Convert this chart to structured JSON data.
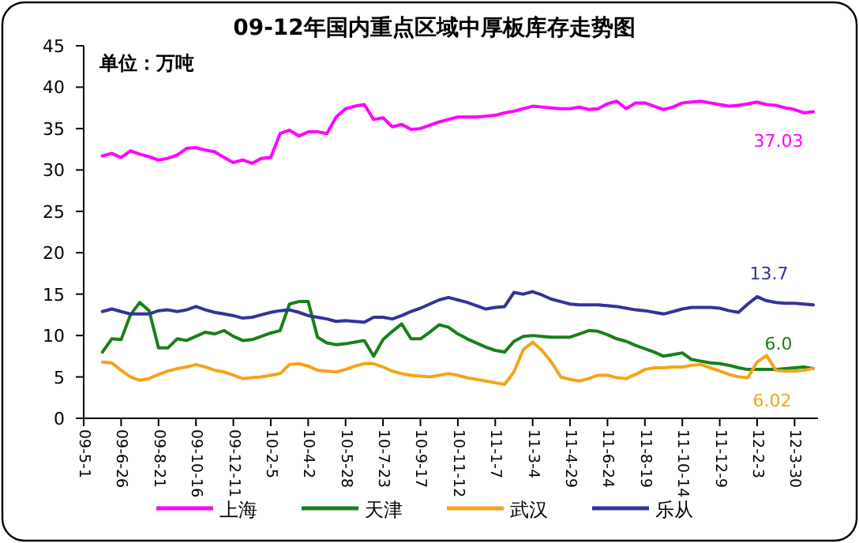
{
  "chart_data": {
    "type": "line",
    "title": "09-12年国内重点区域中厚板库存走势图",
    "ylabel": "单位：万吨",
    "x": [
      "2009-05-29",
      "2009-06-12",
      "2009-06-26",
      "2009-07-10",
      "2009-07-24",
      "2009-08-07",
      "2009-08-21",
      "2009-09-04",
      "2009-09-18",
      "2009-10-02",
      "2009-10-16",
      "2009-10-30",
      "2009-11-13",
      "2009-11-27",
      "2009-12-11",
      "2009-12-25",
      "2010-01-08",
      "2010-01-22",
      "2010-02-05",
      "2010-02-19",
      "2010-03-05",
      "2010-03-19",
      "2010-04-02",
      "2010-04-16",
      "2010-04-30",
      "2010-05-14",
      "2010-05-28",
      "2010-06-11",
      "2010-06-25",
      "2010-07-09",
      "2010-07-23",
      "2010-08-06",
      "2010-08-20",
      "2010-09-03",
      "2010-09-17",
      "2010-10-01",
      "2010-10-15",
      "2010-10-29",
      "2010-11-12",
      "2010-11-26",
      "2010-12-10",
      "2010-12-24",
      "2011-01-07",
      "2011-01-21",
      "2011-02-04",
      "2011-02-18",
      "2011-03-04",
      "2011-03-18",
      "2011-04-01",
      "2011-04-15",
      "2011-04-29",
      "2011-05-13",
      "2011-05-27",
      "2011-06-10",
      "2011-06-24",
      "2011-07-08",
      "2011-07-22",
      "2011-08-05",
      "2011-08-19",
      "2011-09-02",
      "2011-09-16",
      "2011-09-30",
      "2011-10-14",
      "2011-10-28",
      "2011-11-11",
      "2011-11-25",
      "2011-12-09",
      "2011-12-23",
      "2012-01-06",
      "2012-01-20",
      "2012-02-03",
      "2012-02-17",
      "2012-03-02",
      "2012-03-16",
      "2012-03-30",
      "2012-04-13",
      "2012-04-27"
    ],
    "series": [
      {
        "name": "上海",
        "color": "#ff00ff",
        "values": [
          31.7,
          32.0,
          31.5,
          32.3,
          31.9,
          31.6,
          31.2,
          31.4,
          31.8,
          32.6,
          32.7,
          32.4,
          32.2,
          31.5,
          30.9,
          31.2,
          30.8,
          31.4,
          31.5,
          34.4,
          34.8,
          34.1,
          34.6,
          34.6,
          34.4,
          36.4,
          37.4,
          37.7,
          37.9,
          36.1,
          36.3,
          35.2,
          35.5,
          34.9,
          35.0,
          35.4,
          35.8,
          36.1,
          36.4,
          36.4,
          36.4,
          36.5,
          36.6,
          36.9,
          37.1,
          37.4,
          37.7,
          37.6,
          37.5,
          37.4,
          37.4,
          37.6,
          37.3,
          37.4,
          38.0,
          38.3,
          37.4,
          38.1,
          38.1,
          37.7,
          37.3,
          37.6,
          38.1,
          38.2,
          38.3,
          38.1,
          37.9,
          37.7,
          37.8,
          38.0,
          38.2,
          37.9,
          37.8,
          37.5,
          37.3,
          36.9,
          37.03
        ]
      },
      {
        "name": "天津",
        "color": "#1a7f1a",
        "values": [
          8.0,
          9.6,
          9.5,
          12.5,
          14.0,
          13.0,
          8.5,
          8.5,
          9.6,
          9.4,
          9.9,
          10.4,
          10.2,
          10.6,
          9.9,
          9.4,
          9.5,
          9.9,
          10.3,
          10.6,
          13.8,
          14.1,
          14.1,
          9.8,
          9.1,
          8.9,
          9.0,
          9.2,
          9.4,
          7.5,
          9.5,
          10.5,
          11.4,
          9.6,
          9.6,
          10.4,
          11.3,
          11.0,
          10.2,
          9.6,
          9.1,
          8.6,
          8.2,
          8.0,
          9.3,
          9.9,
          10.0,
          9.9,
          9.8,
          9.8,
          9.8,
          10.2,
          10.6,
          10.5,
          10.1,
          9.6,
          9.3,
          8.8,
          8.4,
          8.0,
          7.5,
          7.7,
          7.9,
          7.1,
          6.9,
          6.7,
          6.6,
          6.4,
          6.1,
          5.9,
          5.9,
          5.9,
          5.9,
          6.0,
          6.1,
          6.2,
          6.0
        ]
      },
      {
        "name": "武汉",
        "color": "#f5a31a",
        "values": [
          6.8,
          6.7,
          5.8,
          5.0,
          4.6,
          4.8,
          5.3,
          5.7,
          6.0,
          6.2,
          6.5,
          6.2,
          5.8,
          5.6,
          5.2,
          4.8,
          4.9,
          5.0,
          5.2,
          5.4,
          6.5,
          6.6,
          6.3,
          5.8,
          5.7,
          5.6,
          5.9,
          6.3,
          6.6,
          6.6,
          6.2,
          5.7,
          5.4,
          5.2,
          5.1,
          5.0,
          5.2,
          5.4,
          5.2,
          4.9,
          4.7,
          4.5,
          4.3,
          4.1,
          5.6,
          8.3,
          9.2,
          8.2,
          6.8,
          5.0,
          4.7,
          4.5,
          4.8,
          5.2,
          5.2,
          4.9,
          4.8,
          5.3,
          5.9,
          6.1,
          6.1,
          6.2,
          6.2,
          6.4,
          6.5,
          6.1,
          5.7,
          5.3,
          5.0,
          4.9,
          6.8,
          7.6,
          5.8,
          5.7,
          5.7,
          5.8,
          6.02
        ]
      },
      {
        "name": "乐从",
        "color": "#333399",
        "values": [
          12.9,
          13.2,
          12.9,
          12.6,
          12.6,
          12.6,
          13.0,
          13.1,
          12.9,
          13.1,
          13.5,
          13.1,
          12.8,
          12.6,
          12.4,
          12.1,
          12.2,
          12.5,
          12.8,
          13.0,
          13.1,
          12.8,
          12.4,
          12.2,
          12.0,
          11.7,
          11.8,
          11.7,
          11.6,
          12.2,
          12.2,
          12.0,
          12.4,
          12.9,
          13.3,
          13.8,
          14.3,
          14.6,
          14.3,
          14.0,
          13.6,
          13.2,
          13.4,
          13.5,
          15.2,
          15.0,
          15.3,
          14.9,
          14.4,
          14.1,
          13.8,
          13.7,
          13.7,
          13.7,
          13.6,
          13.5,
          13.3,
          13.1,
          13.0,
          12.8,
          12.6,
          12.9,
          13.2,
          13.4,
          13.4,
          13.4,
          13.3,
          13.0,
          12.8,
          13.8,
          14.7,
          14.2,
          14.0,
          13.9,
          13.9,
          13.8,
          13.7
        ]
      }
    ],
    "xlim": [
      "2009-05-01",
      "2012-05-04"
    ],
    "xticks": [
      {
        "value": "2009-05-01",
        "label": "09-5-1"
      },
      {
        "value": "2009-06-26",
        "label": "09-6-26"
      },
      {
        "value": "2009-08-21",
        "label": "09-8-21"
      },
      {
        "value": "2009-10-16",
        "label": "09-10-16"
      },
      {
        "value": "2009-12-11",
        "label": "09-12-11"
      },
      {
        "value": "2010-02-05",
        "label": "10-2-5"
      },
      {
        "value": "2010-04-02",
        "label": "10-4-2"
      },
      {
        "value": "2010-05-28",
        "label": "10-5-28"
      },
      {
        "value": "2010-07-23",
        "label": "10-7-23"
      },
      {
        "value": "2010-09-17",
        "label": "10-9-17"
      },
      {
        "value": "2010-11-12",
        "label": "10-11-12"
      },
      {
        "value": "2011-01-07",
        "label": "11-1-7"
      },
      {
        "value": "2011-03-04",
        "label": "11-3-4"
      },
      {
        "value": "2011-04-29",
        "label": "11-4-29"
      },
      {
        "value": "2011-06-24",
        "label": "11-6-24"
      },
      {
        "value": "2011-08-19",
        "label": "11-8-19"
      },
      {
        "value": "2011-10-14",
        "label": "11-10-14"
      },
      {
        "value": "2011-12-09",
        "label": "11-12-9"
      },
      {
        "value": "2012-02-03",
        "label": "12-2-3"
      },
      {
        "value": "2012-03-30",
        "label": "12-3-30"
      }
    ],
    "ylim": [
      0,
      45
    ],
    "yticks": [
      0,
      5,
      10,
      15,
      20,
      25,
      30,
      35,
      40,
      45
    ],
    "legend": "bottom",
    "marker": "none",
    "line_style": "solid",
    "annotations": [
      {
        "text": "37.03",
        "x": "2012-04-27",
        "y": 37.03
      },
      {
        "text": "6.0",
        "x": "2012-04-27",
        "y": 6.0
      },
      {
        "text": "6.02",
        "x": "2012-04-27",
        "y": 6.02
      },
      {
        "text": "13.7",
        "x": "2012-04-27",
        "y": 13.7
      }
    ]
  }
}
